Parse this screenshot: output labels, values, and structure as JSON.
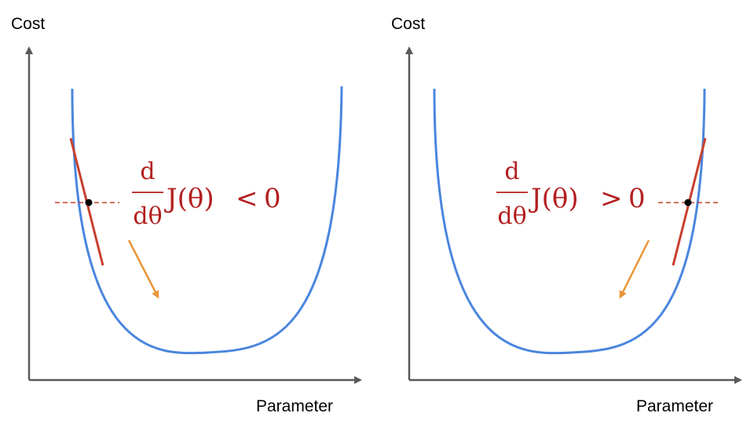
{
  "colors": {
    "axis": "#595959",
    "curve": "#4a86de",
    "tangent": "#c8402e",
    "guide": "#c8402e",
    "point": "#000000",
    "arrow": "#e8953a",
    "formula": "#b42020"
  },
  "panels": [
    {
      "id": "left",
      "y_axis_label": "Cost",
      "x_axis_label": "Parameter",
      "formula": {
        "numerator": "d",
        "denominator": "dθ",
        "function": "J(θ)",
        "relation": "<",
        "value": "0"
      },
      "slope_sign": "negative",
      "step_direction": "down-right"
    },
    {
      "id": "right",
      "y_axis_label": "Cost",
      "x_axis_label": "Parameter",
      "formula": {
        "numerator": "d",
        "denominator": "dθ",
        "function": "J(θ)",
        "relation": ">",
        "value": "0"
      },
      "slope_sign": "positive",
      "step_direction": "down-left"
    }
  ]
}
